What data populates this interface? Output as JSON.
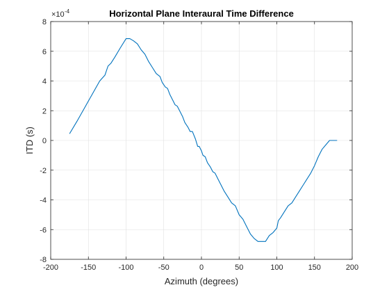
{
  "chart_data": {
    "type": "line",
    "title": "Horizontal Plane Interaural Time Difference",
    "xlabel": "Azimuth (degrees)",
    "ylabel": "ITD (s)",
    "y_exponent_label": "×10",
    "y_exponent_power": "-4",
    "xlim": [
      -200,
      200
    ],
    "ylim": [
      -8,
      8
    ],
    "x_ticks": [
      -200,
      -150,
      -100,
      -50,
      0,
      50,
      100,
      150,
      200
    ],
    "y_ticks": [
      -8,
      -6,
      -4,
      -2,
      0,
      2,
      4,
      6,
      8
    ],
    "grid": true,
    "line_color": "#0072BD",
    "series": [
      {
        "x": [
          -175,
          -165,
          -155,
          -145,
          -135,
          -128,
          -124,
          -120,
          -115,
          -108,
          -100,
          -95,
          -90,
          -85,
          -80,
          -75,
          -70,
          -65,
          -60,
          -55,
          -52,
          -48,
          -45,
          -42,
          -38,
          -35,
          -32,
          -28,
          -25,
          -22,
          -18,
          -15,
          -12,
          -8,
          -5,
          -3,
          0,
          2,
          5,
          8,
          12,
          15,
          18,
          22,
          25,
          30,
          35,
          40,
          45,
          50,
          55,
          60,
          65,
          70,
          75,
          80,
          85,
          90,
          95,
          100,
          102,
          105,
          110,
          115,
          120,
          125,
          130,
          135,
          140,
          145,
          150,
          155,
          160,
          165,
          170,
          175,
          180
        ],
        "values": [
          0.45,
          1.3,
          2.2,
          3.1,
          4.0,
          4.4,
          5.0,
          5.2,
          5.6,
          6.2,
          6.85,
          6.85,
          6.7,
          6.5,
          6.1,
          5.8,
          5.3,
          4.9,
          4.5,
          4.3,
          3.9,
          3.6,
          3.5,
          3.1,
          2.7,
          2.4,
          2.3,
          1.9,
          1.6,
          1.2,
          0.9,
          0.6,
          0.6,
          0.1,
          -0.4,
          -0.4,
          -0.7,
          -1.0,
          -1.1,
          -1.5,
          -1.8,
          -2.1,
          -2.2,
          -2.6,
          -2.9,
          -3.4,
          -3.8,
          -4.2,
          -4.4,
          -5.0,
          -5.3,
          -5.8,
          -6.3,
          -6.6,
          -6.8,
          -6.8,
          -6.8,
          -6.4,
          -6.2,
          -5.9,
          -5.4,
          -5.2,
          -4.8,
          -4.4,
          -4.2,
          -3.8,
          -3.4,
          -3.0,
          -2.6,
          -2.2,
          -1.7,
          -1.1,
          -0.6,
          -0.3,
          0.0,
          0.0,
          0.0
        ]
      }
    ]
  }
}
